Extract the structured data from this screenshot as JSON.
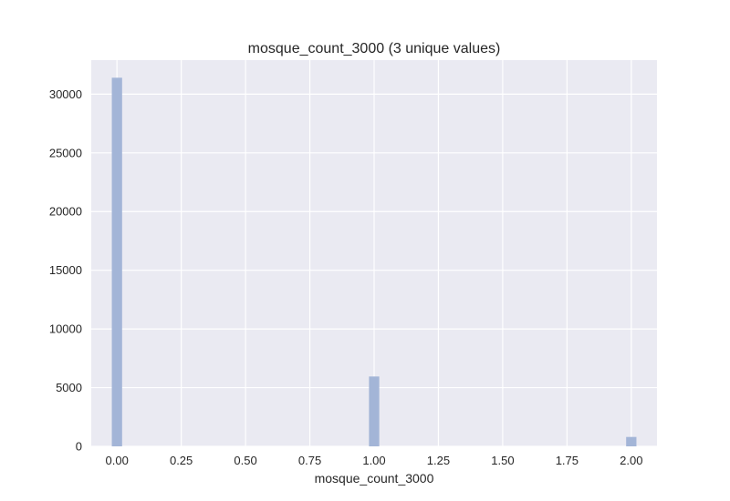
{
  "chart_data": {
    "type": "bar",
    "title": "mosque_count_3000 (3 unique values)",
    "xlabel": "mosque_count_3000",
    "ylabel": "",
    "x": [
      0,
      1,
      2
    ],
    "values": [
      31400,
      5950,
      800
    ],
    "bin_width": 0.04,
    "xlim": [
      -0.1,
      2.1
    ],
    "ylim": [
      0,
      32900
    ],
    "xticks": [
      0.0,
      0.25,
      0.5,
      0.75,
      1.0,
      1.25,
      1.5,
      1.75,
      2.0
    ],
    "xtick_labels": [
      "0.00",
      "0.25",
      "0.50",
      "0.75",
      "1.00",
      "1.25",
      "1.50",
      "1.75",
      "2.00"
    ],
    "yticks": [
      0,
      5000,
      10000,
      15000,
      20000,
      25000,
      30000
    ],
    "ytick_labels": [
      "0",
      "5000",
      "10000",
      "15000",
      "20000",
      "25000",
      "30000"
    ],
    "grid": true,
    "legend": "none",
    "colors": {
      "bar": "#a3b5d7",
      "plot_background": "#eaeaf2",
      "grid": "#ffffff",
      "text": "#262626"
    }
  }
}
